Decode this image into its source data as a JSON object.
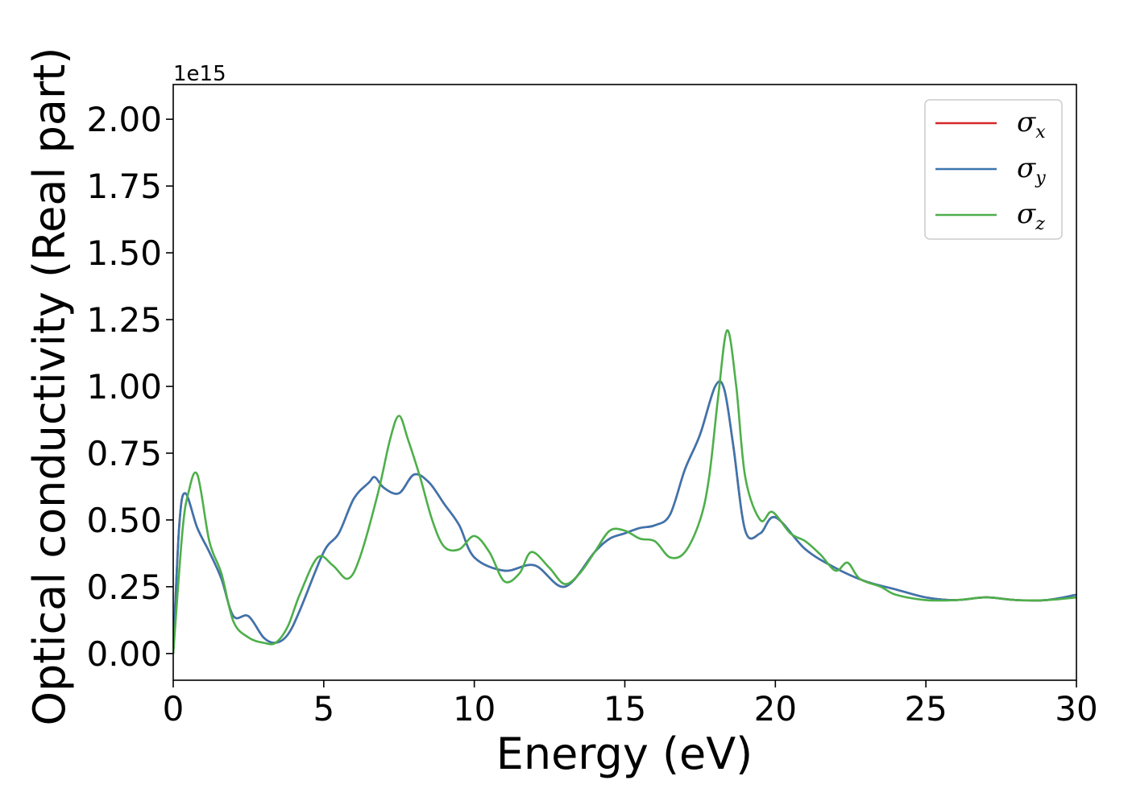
{
  "chart_data": {
    "type": "line",
    "title": "",
    "xlabel": "Energy (eV)",
    "ylabel": "Optical conductivity (Real part)",
    "y_offset_label": "1e15",
    "y_scale": 1000000000000000.0,
    "xlim": [
      0,
      30
    ],
    "ylim": [
      -0.1,
      2.13
    ],
    "x_ticks": [
      "0",
      "5",
      "10",
      "15",
      "20",
      "25",
      "30"
    ],
    "y_ticks": [
      "0.00",
      "0.25",
      "0.50",
      "0.75",
      "1.00",
      "1.25",
      "1.50",
      "1.75",
      "2.00"
    ],
    "grid": false,
    "legend_position": "top-right",
    "series": [
      {
        "name": "σx",
        "symbol": "σ",
        "subscript": "x",
        "color": "#d62728",
        "x": [
          0,
          0.2,
          0.4,
          0.8,
          1.2,
          1.6,
          2.0,
          2.5,
          3.0,
          3.4,
          3.8,
          4.2,
          5.0,
          5.5,
          6.0,
          6.5,
          6.7,
          7.0,
          7.5,
          8.0,
          8.5,
          9.0,
          9.5,
          10.0,
          11.0,
          12.0,
          13.0,
          14.0,
          14.5,
          15.0,
          15.5,
          16.0,
          16.5,
          17.0,
          17.5,
          18.0,
          18.3,
          18.6,
          19.0,
          19.5,
          20.0,
          21.0,
          22.0,
          23.0,
          24.0,
          25.0,
          26.0,
          27.0,
          28.0,
          29.0,
          30.0
        ],
        "y": [
          0.0,
          0.48,
          0.6,
          0.47,
          0.38,
          0.28,
          0.14,
          0.14,
          0.06,
          0.04,
          0.07,
          0.16,
          0.38,
          0.45,
          0.58,
          0.64,
          0.66,
          0.62,
          0.6,
          0.67,
          0.64,
          0.56,
          0.48,
          0.36,
          0.31,
          0.33,
          0.25,
          0.38,
          0.43,
          0.45,
          0.47,
          0.48,
          0.52,
          0.69,
          0.82,
          1.0,
          0.99,
          0.78,
          0.46,
          0.45,
          0.51,
          0.39,
          0.32,
          0.27,
          0.24,
          0.21,
          0.2,
          0.21,
          0.2,
          0.2,
          0.22
        ]
      },
      {
        "name": "σy",
        "symbol": "σ",
        "subscript": "y",
        "color": "#3b75af",
        "x": [
          0,
          0.2,
          0.4,
          0.8,
          1.2,
          1.6,
          2.0,
          2.5,
          3.0,
          3.4,
          3.8,
          4.2,
          5.0,
          5.5,
          6.0,
          6.5,
          6.7,
          7.0,
          7.5,
          8.0,
          8.5,
          9.0,
          9.5,
          10.0,
          11.0,
          12.0,
          13.0,
          14.0,
          14.5,
          15.0,
          15.5,
          16.0,
          16.5,
          17.0,
          17.5,
          18.0,
          18.3,
          18.6,
          19.0,
          19.5,
          20.0,
          21.0,
          22.0,
          23.0,
          24.0,
          25.0,
          26.0,
          27.0,
          28.0,
          29.0,
          30.0
        ],
        "y": [
          0.0,
          0.48,
          0.6,
          0.47,
          0.38,
          0.28,
          0.14,
          0.14,
          0.06,
          0.04,
          0.07,
          0.16,
          0.38,
          0.45,
          0.58,
          0.64,
          0.66,
          0.62,
          0.6,
          0.67,
          0.64,
          0.56,
          0.48,
          0.36,
          0.31,
          0.33,
          0.25,
          0.38,
          0.43,
          0.45,
          0.47,
          0.48,
          0.52,
          0.69,
          0.82,
          1.0,
          0.99,
          0.78,
          0.46,
          0.45,
          0.51,
          0.39,
          0.32,
          0.27,
          0.24,
          0.21,
          0.2,
          0.21,
          0.2,
          0.2,
          0.22
        ]
      },
      {
        "name": "σz",
        "symbol": "σ",
        "subscript": "z",
        "color": "#4daf4a",
        "x": [
          0,
          0.3,
          0.5,
          0.8,
          1.2,
          1.6,
          2.0,
          2.5,
          3.0,
          3.4,
          3.8,
          4.2,
          4.8,
          5.3,
          5.8,
          6.2,
          6.8,
          7.2,
          7.5,
          7.8,
          8.2,
          8.6,
          9.0,
          9.5,
          10.0,
          10.5,
          11.0,
          11.5,
          11.9,
          12.5,
          13.0,
          13.5,
          14.0,
          14.5,
          15.0,
          15.5,
          16.0,
          16.5,
          17.0,
          17.5,
          17.8,
          18.1,
          18.4,
          18.7,
          19.0,
          19.5,
          19.9,
          20.5,
          21.0,
          21.5,
          22.0,
          22.4,
          22.8,
          23.5,
          24.0,
          25.0,
          26.0,
          27.0,
          28.0,
          29.0,
          30.0
        ],
        "y": [
          0.0,
          0.45,
          0.6,
          0.67,
          0.42,
          0.3,
          0.12,
          0.06,
          0.04,
          0.04,
          0.1,
          0.22,
          0.36,
          0.33,
          0.28,
          0.36,
          0.6,
          0.8,
          0.89,
          0.8,
          0.66,
          0.5,
          0.4,
          0.39,
          0.44,
          0.38,
          0.27,
          0.3,
          0.38,
          0.32,
          0.26,
          0.3,
          0.38,
          0.46,
          0.46,
          0.43,
          0.42,
          0.36,
          0.38,
          0.5,
          0.66,
          0.96,
          1.21,
          1.0,
          0.66,
          0.5,
          0.53,
          0.45,
          0.42,
          0.37,
          0.31,
          0.34,
          0.28,
          0.25,
          0.22,
          0.2,
          0.2,
          0.21,
          0.2,
          0.2,
          0.21
        ]
      }
    ]
  }
}
